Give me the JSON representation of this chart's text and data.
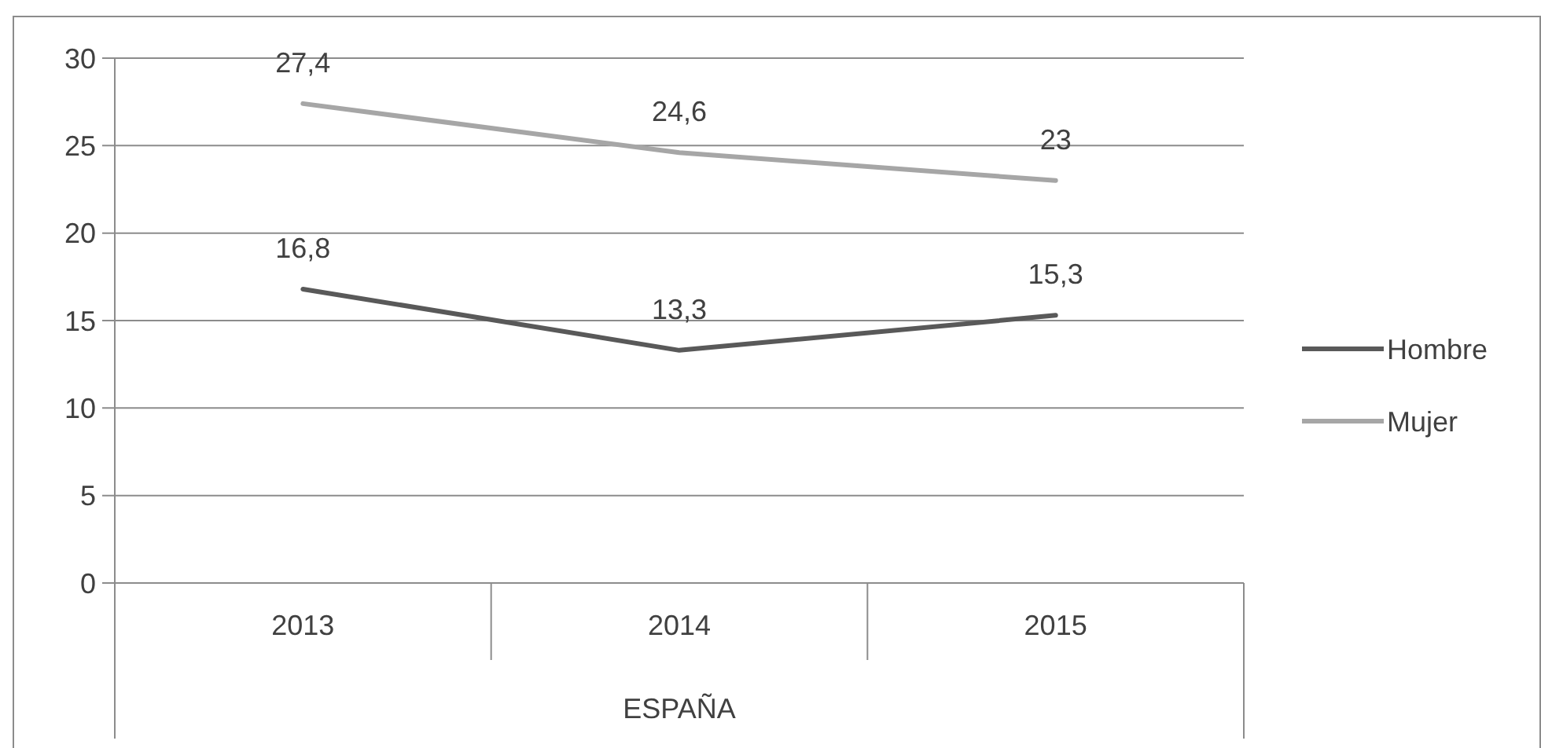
{
  "chart_data": {
    "type": "line",
    "categories": [
      "2013",
      "2014",
      "2015"
    ],
    "xlabel": "ESPAÑA",
    "series": [
      {
        "name": "Hombre",
        "color": "#595959",
        "values": [
          16.8,
          13.3,
          15.3
        ],
        "value_labels": [
          "16,8",
          "13,3",
          "15,3"
        ]
      },
      {
        "name": "Mujer",
        "color": "#a6a6a6",
        "values": [
          27.4,
          24.6,
          23
        ],
        "value_labels": [
          "27,4",
          "24,6",
          "23"
        ]
      }
    ],
    "ylim": [
      0,
      30
    ],
    "yticks": [
      0,
      5,
      10,
      15,
      20,
      25,
      30
    ],
    "grid": "y",
    "legend": "right",
    "marker": "none",
    "line_style": "solid"
  }
}
